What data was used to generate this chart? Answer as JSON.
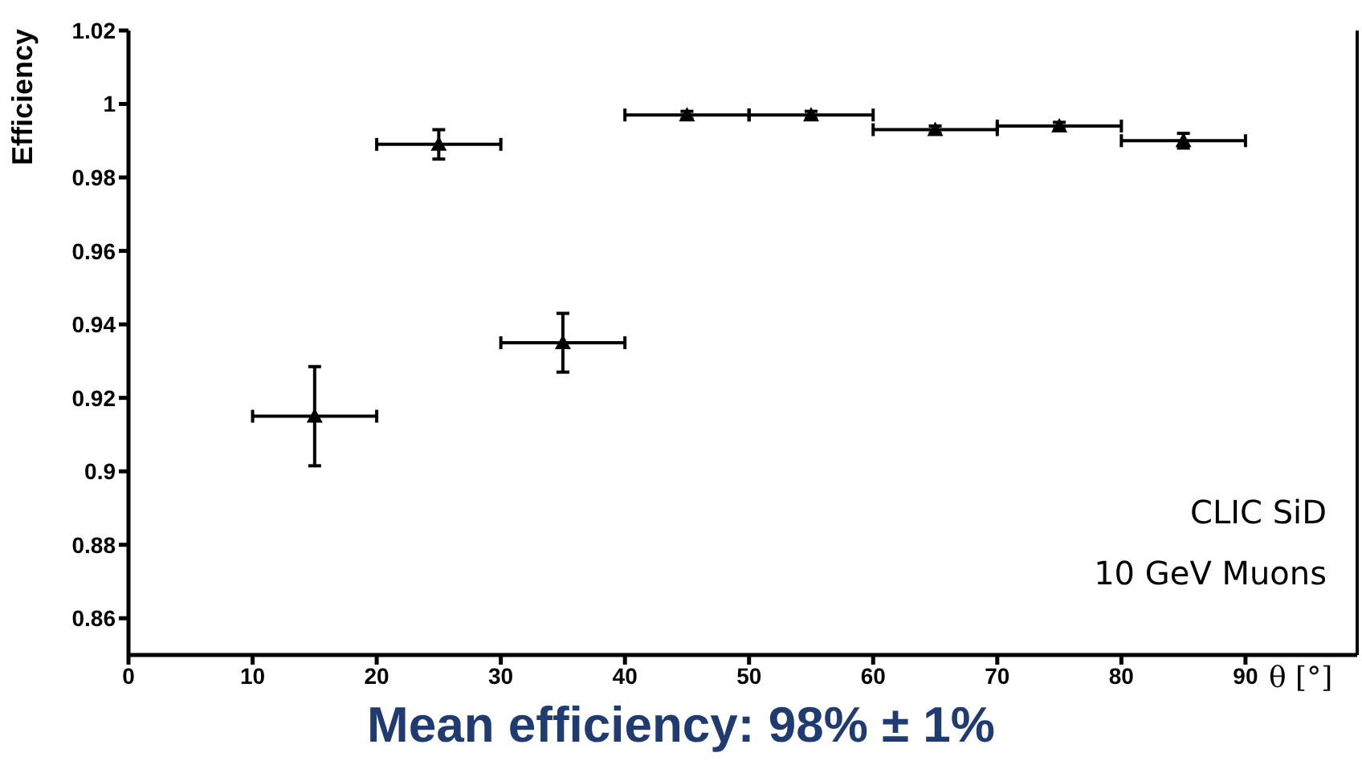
{
  "chart_data": {
    "type": "scatter",
    "title": "Mean efficiency: 98% ± 1%",
    "xlabel": "θ [°]",
    "ylabel": "Efficiency",
    "annotations": [
      "CLIC SiD",
      "10 GeV Muons"
    ],
    "x": [
      15,
      25,
      35,
      45,
      55,
      65,
      75,
      85
    ],
    "series": [
      {
        "color": "#000000",
        "values": [
          0.915,
          0.989,
          0.935,
          0.997,
          0.997,
          0.993,
          0.994,
          0.99
        ],
        "errors": [
          0.0135,
          0.004,
          0.008,
          0.001,
          0.001,
          0.001,
          0.001,
          0.002
        ],
        "xerrors": [
          5,
          5,
          5,
          5,
          5,
          5,
          5,
          5
        ]
      }
    ],
    "xlim": [
      0,
      99
    ],
    "xticks": [
      0,
      10,
      20,
      30,
      40,
      50,
      60,
      70,
      80,
      90
    ],
    "ylim": [
      0.85,
      1.02
    ],
    "yticks": [
      0.86,
      0.88,
      0.9,
      0.92,
      0.94,
      0.96,
      0.98,
      1,
      1.02
    ],
    "marker": "triangle",
    "grid": false,
    "legend": false
  }
}
